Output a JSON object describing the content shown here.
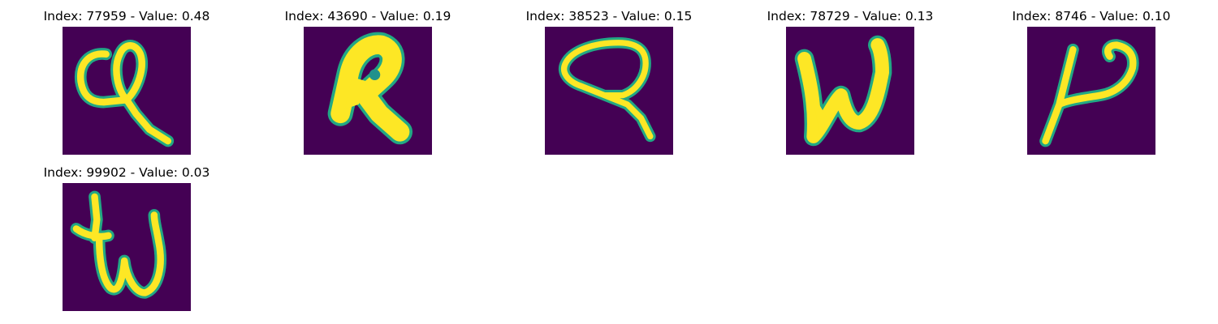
{
  "panels": [
    {
      "title": "Index: 77959 - Value: 0.48",
      "glyph": "handwritten-c-loop"
    },
    {
      "title": "Index: 43690 - Value: 0.19",
      "glyph": "handwritten-R"
    },
    {
      "title": "Index: 38523 - Value: 0.15",
      "glyph": "handwritten-Q"
    },
    {
      "title": "Index: 78729 - Value: 0.13",
      "glyph": "handwritten-W"
    },
    {
      "title": "Index: 8746 - Value: 0.10",
      "glyph": "handwritten-P"
    },
    {
      "title": "Index: 99902 - Value: 0.03",
      "glyph": "handwritten-tw"
    }
  ],
  "colors": {
    "background": "#440154",
    "stroke_core": "#fde725",
    "stroke_edge": "#22a884"
  }
}
